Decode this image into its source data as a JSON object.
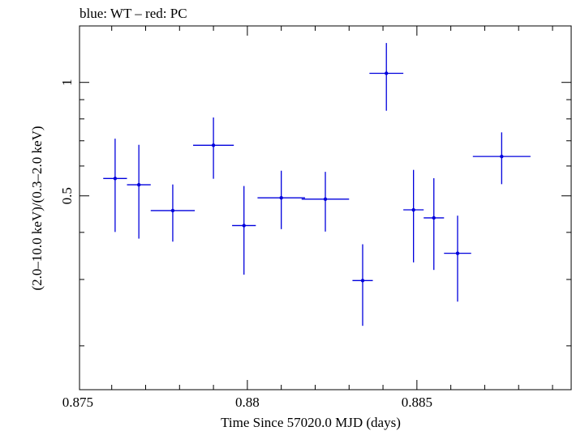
{
  "chart_data": {
    "type": "scatter",
    "title": "blue: WT – red: PC",
    "xlabel": "Time Since 57020.0 MJD (days)",
    "ylabel": "(2.0–10.0 keV)/(0.3–2.0 keV)",
    "xlim": [
      0.87505,
      0.88955
    ],
    "ylim": [
      0.153,
      1.412
    ],
    "y_scale": "log",
    "grid": false,
    "x_ticks": [
      {
        "value": 0.875,
        "label": "0.875"
      },
      {
        "value": 0.88,
        "label": "0.88"
      },
      {
        "value": 0.885,
        "label": "0.885"
      }
    ],
    "y_ticks": [
      {
        "value": 0.5,
        "label": "0.5"
      },
      {
        "value": 1,
        "label": "1"
      }
    ],
    "series": [
      {
        "color": "#0000dd",
        "points": [
          {
            "x": 0.8761,
            "xerr": 0.00035,
            "y": 0.556,
            "ylo": 0.401,
            "yhi": 0.709
          },
          {
            "x": 0.8768,
            "xerr": 0.00035,
            "y": 0.535,
            "ylo": 0.385,
            "yhi": 0.683
          },
          {
            "x": 0.8778,
            "xerr": 0.00065,
            "y": 0.457,
            "ylo": 0.378,
            "yhi": 0.536
          },
          {
            "x": 0.879,
            "xerr": 0.0006,
            "y": 0.681,
            "ylo": 0.555,
            "yhi": 0.807
          },
          {
            "x": 0.8799,
            "xerr": 0.00035,
            "y": 0.417,
            "ylo": 0.309,
            "yhi": 0.531
          },
          {
            "x": 0.881,
            "xerr": 0.0007,
            "y": 0.494,
            "ylo": 0.408,
            "yhi": 0.583
          },
          {
            "x": 0.8823,
            "xerr": 0.0007,
            "y": 0.49,
            "ylo": 0.402,
            "yhi": 0.579
          },
          {
            "x": 0.8834,
            "xerr": 0.0003,
            "y": 0.298,
            "ylo": 0.226,
            "yhi": 0.372
          },
          {
            "x": 0.8841,
            "xerr": 0.0005,
            "y": 1.057,
            "ylo": 0.841,
            "yhi": 1.272
          },
          {
            "x": 0.8849,
            "xerr": 0.0003,
            "y": 0.459,
            "ylo": 0.333,
            "yhi": 0.586
          },
          {
            "x": 0.8855,
            "xerr": 0.0003,
            "y": 0.437,
            "ylo": 0.318,
            "yhi": 0.557
          },
          {
            "x": 0.8862,
            "xerr": 0.0004,
            "y": 0.352,
            "ylo": 0.262,
            "yhi": 0.443
          },
          {
            "x": 0.8875,
            "xerr": 0.00085,
            "y": 0.636,
            "ylo": 0.537,
            "yhi": 0.737
          }
        ]
      }
    ]
  }
}
